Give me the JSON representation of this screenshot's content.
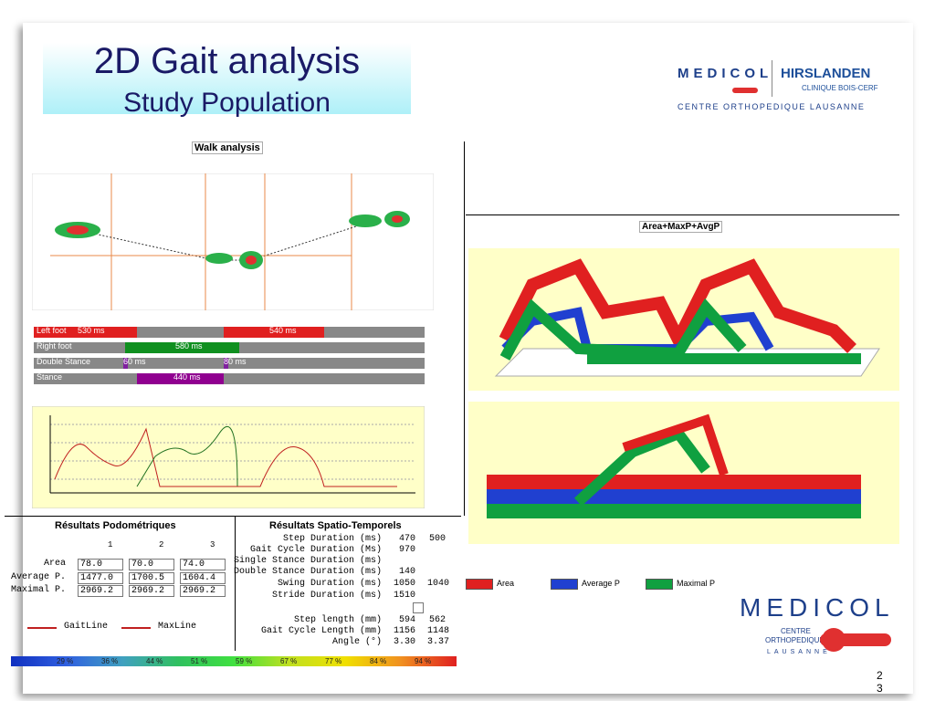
{
  "header": {
    "title": "2D Gait analysis",
    "subtitle": "Study Population"
  },
  "logo_top": {
    "brand": "MEDICOL",
    "partner": "HIRSLANDEN",
    "clinic": "CLINIQUE BOIS-CERF",
    "centre": "CENTRE ORTHOPEDIQUE LAUSANNE"
  },
  "walk": {
    "title": "Walk analysis",
    "bars": [
      {
        "label": "Left foot",
        "texts": [
          "530 ms",
          "540 ms"
        ]
      },
      {
        "label": "Right foot",
        "texts": [
          "580 ms"
        ]
      },
      {
        "label": "Double Stance",
        "texts": [
          "60 ms",
          "80 ms"
        ]
      },
      {
        "label": "Stance",
        "texts": [
          "440 ms"
        ]
      }
    ]
  },
  "pressure": {
    "title": "Area+MaxP+AvgP",
    "legend": [
      "Area",
      "Average P",
      "Maximal P"
    ]
  },
  "podo": {
    "title": "Résultats Podométriques",
    "columns": [
      "1",
      "2",
      "3"
    ],
    "rows": [
      {
        "label": "Area",
        "values": [
          "78.0",
          "70.0",
          "74.0"
        ]
      },
      {
        "label": "Average P.",
        "values": [
          "1477.0",
          "1700.5",
          "1604.4"
        ]
      },
      {
        "label": "Maximal P.",
        "values": [
          "2969.2",
          "2969.2",
          "2969.2"
        ]
      }
    ],
    "legend": [
      "GaitLine",
      "MaxLine"
    ]
  },
  "spatio": {
    "title": "Résultats Spatio-Temporels",
    "rows": [
      {
        "label": "Step Duration (ms)",
        "values": [
          "470",
          "500"
        ]
      },
      {
        "label": "Gait Cycle Duration (Ms)",
        "values": [
          "970"
        ]
      },
      {
        "label": "Single Stance Duration (ms)",
        "values": []
      },
      {
        "label": "Double Stance Duration (ms)",
        "values": [
          "140"
        ]
      },
      {
        "label": "Swing Duration (ms)",
        "values": [
          "1050",
          "1040"
        ]
      },
      {
        "label": "Stride Duration (ms)",
        "values": [
          "1510"
        ]
      },
      {
        "label": "Step length (mm)",
        "values": [
          "594",
          "562"
        ]
      },
      {
        "label": "Gait Cycle Length (mm)",
        "values": [
          "1156",
          "1148"
        ]
      },
      {
        "label": "Angle (°)",
        "values": [
          "3.30",
          "3.37"
        ]
      }
    ]
  },
  "scale": [
    "29 %",
    "36 %",
    "44 %",
    "51 %",
    "59 %",
    "67 %",
    "77 %",
    "84 %",
    "94 %"
  ],
  "logo_bottom": {
    "brand": "MEDICOL",
    "line1": "CENTRE",
    "line2": "ORTHOPEDIQUE",
    "line3": "LAUSANNE"
  },
  "page_number": "23"
}
